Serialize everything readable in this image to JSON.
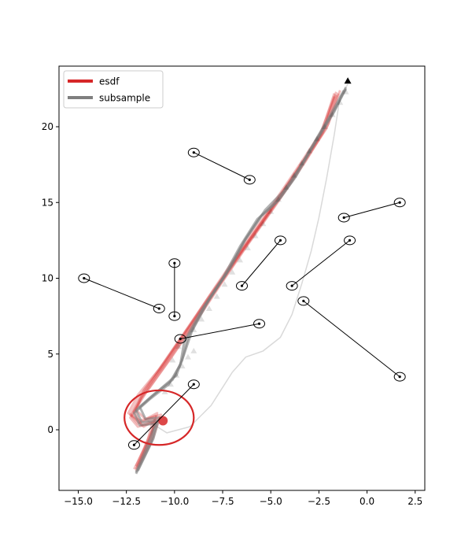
{
  "chart_data": {
    "type": "line",
    "title": "",
    "xlabel": "",
    "ylabel": "",
    "xlim": [
      -16,
      3
    ],
    "ylim": [
      -4,
      24
    ],
    "xticks": [
      -15.0,
      -12.5,
      -10.0,
      -7.5,
      -5.0,
      -2.5,
      0.0,
      2.5
    ],
    "xtick_labels": [
      "−15.0",
      "−12.5",
      "−10.0",
      "−7.5",
      "−5.0",
      "−2.5",
      "0.0",
      "2.5"
    ],
    "yticks": [
      0,
      5,
      10,
      15,
      20
    ],
    "ytick_labels": [
      "0",
      "5",
      "10",
      "15",
      "20"
    ],
    "grid": false,
    "legend_position": "upper-left",
    "legend": [
      {
        "label": "esdf",
        "color": "#d62728"
      },
      {
        "label": "subsample",
        "color": "#7f7f7f"
      }
    ],
    "colors": {
      "esdf": "#d62728",
      "subsample": "#7f7f7f",
      "guide": "#d9d9d9",
      "markers": "#000000"
    },
    "esdf_paths": [
      [
        [
          -12.0,
          -2.6
        ],
        [
          -11.2,
          -0.6
        ],
        [
          -11.0,
          0.9
        ],
        [
          -11.9,
          0.4
        ],
        [
          -12.3,
          1.0
        ],
        [
          -11.8,
          2.2
        ],
        [
          -10.6,
          4.2
        ],
        [
          -9.3,
          6.6
        ],
        [
          -8.0,
          9.0
        ],
        [
          -6.6,
          11.6
        ],
        [
          -5.1,
          14.3
        ],
        [
          -3.6,
          17.1
        ],
        [
          -2.3,
          19.6
        ],
        [
          -1.6,
          22.3
        ]
      ],
      [
        [
          -12.0,
          -2.4
        ],
        [
          -11.3,
          -0.4
        ],
        [
          -10.8,
          0.8
        ],
        [
          -11.6,
          0.2
        ],
        [
          -12.2,
          0.9
        ],
        [
          -11.7,
          2.1
        ],
        [
          -10.4,
          4.4
        ],
        [
          -9.1,
          6.8
        ],
        [
          -7.8,
          9.3
        ],
        [
          -6.4,
          11.9
        ],
        [
          -4.9,
          14.6
        ],
        [
          -3.4,
          17.4
        ],
        [
          -2.1,
          19.9
        ],
        [
          -1.5,
          22.2
        ]
      ],
      [
        [
          -11.9,
          -2.5
        ],
        [
          -11.1,
          -0.5
        ],
        [
          -10.7,
          1.0
        ],
        [
          -11.8,
          0.6
        ],
        [
          -12.4,
          1.1
        ],
        [
          -11.9,
          2.3
        ],
        [
          -10.8,
          4.0
        ],
        [
          -9.5,
          6.4
        ],
        [
          -8.2,
          8.8
        ],
        [
          -6.8,
          11.3
        ],
        [
          -5.3,
          14.0
        ],
        [
          -3.8,
          16.8
        ],
        [
          -2.5,
          19.3
        ],
        [
          -1.7,
          22.0
        ]
      ],
      [
        [
          -12.0,
          -2.7
        ],
        [
          -11.4,
          -0.7
        ],
        [
          -11.1,
          0.7
        ],
        [
          -11.7,
          0.3
        ],
        [
          -12.1,
          1.2
        ],
        [
          -11.5,
          2.4
        ],
        [
          -10.2,
          4.7
        ],
        [
          -8.9,
          7.1
        ],
        [
          -7.6,
          9.6
        ],
        [
          -6.2,
          12.2
        ],
        [
          -4.7,
          14.9
        ],
        [
          -3.2,
          17.7
        ],
        [
          -2.0,
          20.2
        ],
        [
          -1.4,
          22.4
        ]
      ],
      [
        [
          -11.8,
          -2.3
        ],
        [
          -11.2,
          -0.3
        ],
        [
          -10.9,
          1.1
        ],
        [
          -11.5,
          0.7
        ],
        [
          -12.0,
          1.3
        ],
        [
          -11.6,
          2.6
        ],
        [
          -10.5,
          4.5
        ],
        [
          -9.2,
          6.9
        ],
        [
          -7.9,
          9.4
        ],
        [
          -6.5,
          12.0
        ],
        [
          -5.0,
          14.7
        ],
        [
          -3.5,
          17.5
        ],
        [
          -2.2,
          20.0
        ],
        [
          -1.6,
          22.1
        ]
      ],
      [
        [
          -12.1,
          -2.6
        ],
        [
          -11.3,
          -0.6
        ],
        [
          -11.0,
          0.5
        ],
        [
          -11.9,
          0.2
        ],
        [
          -12.3,
          0.8
        ],
        [
          -11.8,
          2.0
        ],
        [
          -10.7,
          4.1
        ],
        [
          -9.4,
          6.5
        ],
        [
          -8.1,
          8.9
        ],
        [
          -6.7,
          11.5
        ],
        [
          -5.2,
          14.2
        ],
        [
          -3.7,
          17.0
        ],
        [
          -2.4,
          19.5
        ],
        [
          -1.7,
          22.2
        ]
      ]
    ],
    "subsample_paths": [
      [
        [
          -12.0,
          -2.9
        ],
        [
          -11.2,
          -0.8
        ],
        [
          -10.9,
          0.6
        ],
        [
          -11.7,
          0.5
        ],
        [
          -12.0,
          1.3
        ],
        [
          -11.2,
          2.2
        ],
        [
          -10.1,
          3.3
        ],
        [
          -9.6,
          4.6
        ],
        [
          -9.3,
          6.1
        ],
        [
          -8.4,
          8.2
        ],
        [
          -7.3,
          10.3
        ],
        [
          -6.4,
          12.4
        ],
        [
          -5.5,
          14.1
        ],
        [
          -4.5,
          15.3
        ],
        [
          -3.7,
          16.7
        ],
        [
          -2.8,
          18.7
        ],
        [
          -1.7,
          21.0
        ],
        [
          -1.1,
          22.6
        ]
      ],
      [
        [
          -11.9,
          -2.7
        ],
        [
          -11.1,
          -0.6
        ],
        [
          -10.8,
          0.8
        ],
        [
          -11.5,
          0.7
        ],
        [
          -11.8,
          1.5
        ],
        [
          -11.0,
          2.4
        ],
        [
          -9.9,
          3.6
        ],
        [
          -9.5,
          5.0
        ],
        [
          -9.1,
          6.5
        ],
        [
          -8.2,
          8.6
        ],
        [
          -7.1,
          10.7
        ],
        [
          -6.3,
          12.6
        ],
        [
          -5.3,
          14.5
        ],
        [
          -4.3,
          15.8
        ],
        [
          -3.5,
          17.3
        ],
        [
          -2.6,
          19.2
        ],
        [
          -1.6,
          21.3
        ],
        [
          -1.1,
          22.5
        ]
      ],
      [
        [
          -12.0,
          -2.8
        ],
        [
          -11.3,
          -0.7
        ],
        [
          -11.0,
          0.4
        ],
        [
          -11.8,
          0.3
        ],
        [
          -12.1,
          1.1
        ],
        [
          -11.3,
          2.0
        ],
        [
          -10.3,
          3.0
        ],
        [
          -9.7,
          4.3
        ],
        [
          -9.5,
          5.8
        ],
        [
          -8.6,
          7.9
        ],
        [
          -7.5,
          10.0
        ],
        [
          -6.6,
          12.1
        ],
        [
          -5.7,
          13.9
        ],
        [
          -4.7,
          15.0
        ],
        [
          -3.9,
          16.4
        ],
        [
          -3.0,
          18.4
        ],
        [
          -1.9,
          20.8
        ],
        [
          -1.2,
          22.4
        ]
      ]
    ],
    "guide_path": [
      [
        -11.4,
        0.6
      ],
      [
        -10.4,
        -0.2
      ],
      [
        -9.2,
        0.2
      ],
      [
        -8.1,
        1.6
      ],
      [
        -7.0,
        3.8
      ],
      [
        -6.3,
        4.8
      ],
      [
        -5.4,
        5.2
      ],
      [
        -4.5,
        6.1
      ],
      [
        -3.9,
        7.6
      ],
      [
        -3.4,
        9.6
      ],
      [
        -2.9,
        11.8
      ],
      [
        -2.5,
        14.0
      ],
      [
        -2.1,
        16.6
      ],
      [
        -1.7,
        19.5
      ],
      [
        -1.4,
        22.0
      ],
      [
        -1.0,
        22.8
      ]
    ],
    "obstacle_pairs": [
      {
        "from": [
          -9.0,
          18.3
        ],
        "to": [
          -6.1,
          16.5
        ]
      },
      {
        "from": [
          -14.7,
          10.0
        ],
        "to": [
          -10.8,
          8.0
        ]
      },
      {
        "from": [
          -10.0,
          11.0
        ],
        "to": [
          -10.0,
          7.5
        ]
      },
      {
        "from": [
          -4.5,
          12.5
        ],
        "to": [
          -6.5,
          9.5
        ]
      },
      {
        "from": [
          -5.6,
          7.0
        ],
        "to": [
          -9.7,
          6.0
        ]
      },
      {
        "from": [
          -0.9,
          12.5
        ],
        "to": [
          -3.9,
          9.5
        ]
      },
      {
        "from": [
          -3.3,
          8.5
        ],
        "to": [
          1.7,
          3.5
        ]
      },
      {
        "from": [
          1.7,
          15.0
        ],
        "to": [
          -1.2,
          14.0
        ]
      },
      {
        "from": [
          -9.0,
          3.0
        ],
        "to": [
          -12.1,
          -1.0
        ]
      }
    ],
    "large_circle": {
      "center": [
        -10.8,
        0.8
      ],
      "radius": 1.8
    },
    "goal_marker": [
      -1.0,
      23.0
    ],
    "triangle_markers": [
      [
        -10.5,
        2.5
      ],
      [
        -10.2,
        3.0
      ],
      [
        -9.9,
        3.6
      ],
      [
        -9.6,
        4.2
      ],
      [
        -9.3,
        4.8
      ],
      [
        -9.0,
        5.2
      ],
      [
        -9.8,
        5.5
      ],
      [
        -10.1,
        4.6
      ],
      [
        -9.0,
        6.6
      ],
      [
        -8.6,
        7.3
      ],
      [
        -8.2,
        8.0
      ],
      [
        -7.8,
        8.8
      ],
      [
        -7.4,
        9.6
      ],
      [
        -7.0,
        10.4
      ],
      [
        -6.6,
        11.2
      ],
      [
        -6.2,
        12.0
      ],
      [
        -5.8,
        12.8
      ],
      [
        -5.4,
        13.6
      ],
      [
        -5.0,
        14.4
      ],
      [
        -4.6,
        15.2
      ],
      [
        -4.2,
        16.0
      ],
      [
        -3.8,
        16.8
      ],
      [
        -3.4,
        17.6
      ],
      [
        -3.0,
        18.4
      ],
      [
        -2.6,
        19.2
      ],
      [
        -2.2,
        20.0
      ],
      [
        -1.8,
        20.8
      ],
      [
        -1.4,
        21.6
      ],
      [
        -1.1,
        22.3
      ]
    ]
  }
}
